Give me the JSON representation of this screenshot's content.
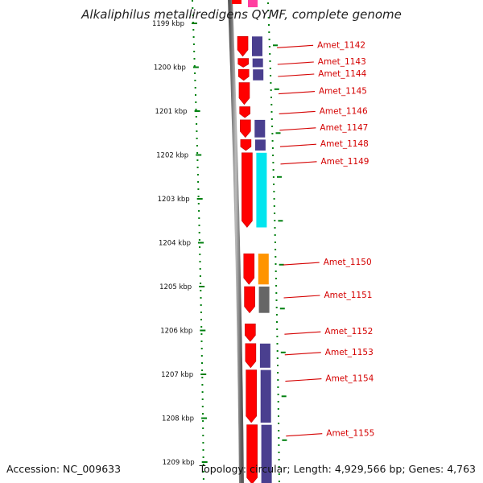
{
  "title": "Alkaliphilus metalliredigens QYMF, complete genome",
  "footer": {
    "accession": "Accession: NC_009633",
    "summary": "Topology: circular; Length: 4,929,566 bp; Genes: 4,763"
  },
  "ticks": [
    {
      "label": "1199 kbp",
      "kbp": 1199
    },
    {
      "label": "1200 kbp",
      "kbp": 1200
    },
    {
      "label": "1201 kbp",
      "kbp": 1201
    },
    {
      "label": "1202 kbp",
      "kbp": 1202
    },
    {
      "label": "1203 kbp",
      "kbp": 1203
    },
    {
      "label": "1204 kbp",
      "kbp": 1204
    },
    {
      "label": "1205 kbp",
      "kbp": 1205
    },
    {
      "label": "1206 kbp",
      "kbp": 1206
    },
    {
      "label": "1207 kbp",
      "kbp": 1207
    },
    {
      "label": "1208 kbp",
      "kbp": 1208
    },
    {
      "label": "1209 kbp",
      "kbp": 1209
    }
  ],
  "genes": [
    {
      "label": "Amet_1142",
      "start": 1199.3,
      "end": 1199.75,
      "cog": "#4a3f8f"
    },
    {
      "label": "Amet_1143",
      "start": 1199.8,
      "end": 1200.0,
      "cog": "#4a3f8f"
    },
    {
      "label": "Amet_1144",
      "start": 1200.05,
      "end": 1200.3,
      "cog": "#4a3f8f"
    },
    {
      "label": "Amet_1145",
      "start": 1200.35,
      "end": 1200.85,
      "cog": ""
    },
    {
      "label": "Amet_1146",
      "start": 1200.9,
      "end": 1201.15,
      "cog": ""
    },
    {
      "label": "Amet_1147",
      "start": 1201.2,
      "end": 1201.6,
      "cog": "#4a3f8f"
    },
    {
      "label": "Amet_1148",
      "start": 1201.65,
      "end": 1201.9,
      "cog": "#4a3f8f"
    },
    {
      "label": "Amet_1149",
      "start": 1201.95,
      "end": 1203.65,
      "cog": "#00e5ee"
    },
    {
      "label": "Amet_1150",
      "start": 1204.25,
      "end": 1204.95,
      "cog": "#ff9400"
    },
    {
      "label": "Amet_1151",
      "start": 1205.0,
      "end": 1205.6,
      "cog": "#666666"
    },
    {
      "label": "Amet_1152",
      "start": 1205.85,
      "end": 1206.25,
      "cog": ""
    },
    {
      "label": "Amet_1153",
      "start": 1206.3,
      "end": 1206.85,
      "cog": "#4a3f8f"
    },
    {
      "label": "Amet_1154",
      "start": 1206.9,
      "end": 1208.1,
      "cog": "#4a3f8f"
    },
    {
      "label": "Amet_1155",
      "start": 1208.15,
      "end": 1209.5,
      "cog": "#4a3f8f"
    }
  ],
  "colors": {
    "cds": "#ff0000",
    "label": "#d40000",
    "tick": "#00800f",
    "backbone": "#888888"
  }
}
